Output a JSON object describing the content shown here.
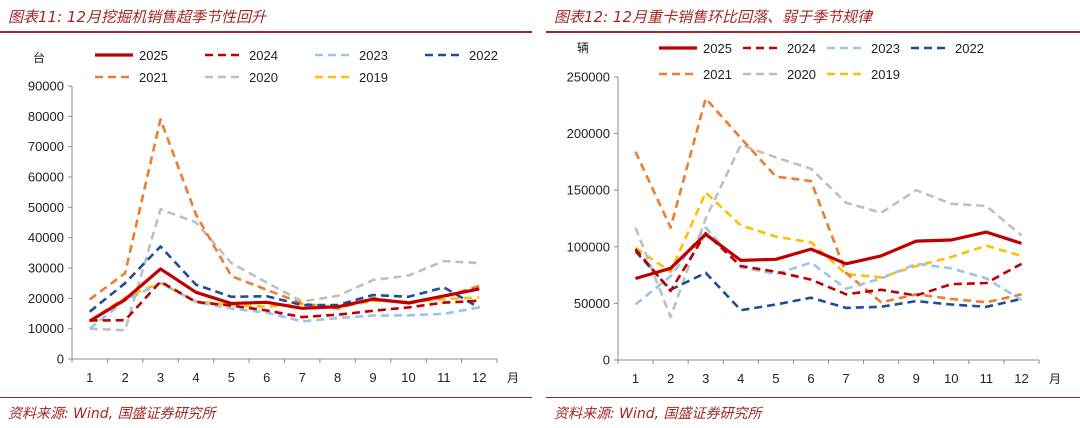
{
  "colors": {
    "accent": "#a32626",
    "series": {
      "2025": "#c00000",
      "2024": "#c00000",
      "2023": "#9dc3e6",
      "2022": "#1f4e99",
      "2021": "#ed7d31",
      "2020": "#bfbfbf",
      "2019": "#ffc000"
    }
  },
  "left": {
    "title": "图表11: 12月挖掘机销售超季节性回升",
    "source": "资料来源: Wind, 国盛证券研究所",
    "chart_data": {
      "type": "line",
      "title": "图表11: 12月挖掘机销售超季节性回升",
      "ylabel": "台",
      "xlabel": "月",
      "ylim": [
        0,
        90000
      ],
      "yticks": [
        0,
        10000,
        20000,
        30000,
        40000,
        50000,
        60000,
        70000,
        80000,
        90000
      ],
      "ytick_labels": [
        "0",
        "10000",
        "20000",
        "30000",
        "40000",
        "50000",
        "60000",
        "70000",
        "80000",
        "90000"
      ],
      "x": [
        1,
        2,
        3,
        4,
        5,
        6,
        7,
        8,
        9,
        10,
        11,
        12
      ],
      "x_labels": [
        "1",
        "2",
        "3",
        "4",
        "5",
        "6",
        "7",
        "8",
        "9",
        "10",
        "11",
        "12"
      ],
      "grid": false,
      "legend_position": "top",
      "series": [
        {
          "name": "2025",
          "style": "solid",
          "color": "#c00000",
          "values": [
            12500,
            19600,
            29700,
            22000,
            18300,
            18700,
            16700,
            17200,
            19700,
            18500,
            20800,
            23100
          ]
        },
        {
          "name": "2024",
          "style": "dashed",
          "color": "#c00000",
          "values": [
            12700,
            12800,
            25500,
            18800,
            17600,
            16000,
            13800,
            14600,
            15900,
            17000,
            18600,
            19200
          ]
        },
        {
          "name": "2023",
          "style": "dashed",
          "color": "#9dc3e6",
          "values": [
            10000,
            19300,
            25000,
            18800,
            16600,
            15300,
            12400,
            13500,
            14300,
            14400,
            14900,
            17000
          ]
        },
        {
          "name": "2022",
          "style": "dashed",
          "color": "#1f4e99",
          "values": [
            15600,
            25000,
            37100,
            24500,
            20500,
            20700,
            17800,
            17800,
            21100,
            20500,
            23600,
            16900
          ]
        },
        {
          "name": "2021",
          "style": "dashed",
          "color": "#ed7d31",
          "values": [
            19600,
            28300,
            79000,
            47600,
            27300,
            22800,
            18300,
            16600,
            20100,
            18300,
            20400,
            24100
          ]
        },
        {
          "name": "2020",
          "style": "dashed",
          "color": "#bfbfbf",
          "values": [
            10000,
            9500,
            49400,
            45000,
            31600,
            25200,
            19000,
            20800,
            26000,
            27500,
            32300,
            31600
          ]
        },
        {
          "name": "2019",
          "style": "dashed",
          "color": "#ffc000",
          "values": [
            12500,
            20300,
            25100,
            19000,
            17800,
            17200,
            18200,
            17000,
            19200,
            18900,
            19700,
            20300
          ]
        }
      ]
    }
  },
  "right": {
    "title": "图表12: 12月重卡销售环比回落、弱于季节规律",
    "source": "资料来源: Wind, 国盛证券研究所",
    "chart_data": {
      "type": "line",
      "title": "图表12: 12月重卡销售环比回落、弱于季节规律",
      "ylabel": "辆",
      "xlabel": "月",
      "ylim": [
        0,
        250000
      ],
      "yticks": [
        0,
        50000,
        100000,
        150000,
        200000,
        250000
      ],
      "ytick_labels": [
        "0",
        "50000",
        "100000",
        "150000",
        "200000",
        "250000"
      ],
      "x": [
        1,
        2,
        3,
        4,
        5,
        6,
        7,
        8,
        9,
        10,
        11,
        12
      ],
      "x_labels": [
        "1",
        "2",
        "3",
        "4",
        "5",
        "6",
        "7",
        "8",
        "9",
        "10",
        "11",
        "12"
      ],
      "grid": false,
      "legend_position": "top",
      "series": [
        {
          "name": "2025",
          "style": "solid",
          "color": "#c00000",
          "values": [
            72000,
            81000,
            111000,
            88000,
            89000,
            98000,
            85000,
            92000,
            105000,
            106000,
            113000,
            103000
          ]
        },
        {
          "name": "2024",
          "style": "dashed",
          "color": "#c00000",
          "values": [
            98000,
            61000,
            112000,
            83000,
            78000,
            71000,
            58000,
            62000,
            57000,
            67000,
            68000,
            85000
          ]
        },
        {
          "name": "2023",
          "style": "dashed",
          "color": "#9dc3e6",
          "values": [
            49000,
            74000,
            117000,
            82000,
            76000,
            86000,
            63000,
            72000,
            85000,
            81000,
            72000,
            53000
          ]
        },
        {
          "name": "2022",
          "style": "dashed",
          "color": "#1f4e99",
          "values": [
            96000,
            62000,
            77000,
            44000,
            49000,
            55000,
            46000,
            47000,
            52000,
            49000,
            47000,
            54000
          ]
        },
        {
          "name": "2021",
          "style": "dashed",
          "color": "#ed7d31",
          "values": [
            184000,
            117000,
            231000,
            196000,
            162000,
            158000,
            77000,
            51000,
            58000,
            54000,
            51000,
            58000
          ]
        },
        {
          "name": "2020",
          "style": "dashed",
          "color": "#bfbfbf",
          "values": [
            117000,
            38000,
            125000,
            190000,
            179000,
            169000,
            139000,
            130000,
            150000,
            138000,
            136000,
            110000
          ]
        },
        {
          "name": "2019",
          "style": "dashed",
          "color": "#ffc000",
          "values": [
            99000,
            78000,
            148000,
            119000,
            109000,
            104000,
            76000,
            73000,
            83000,
            91000,
            101000,
            92000
          ]
        }
      ]
    }
  }
}
